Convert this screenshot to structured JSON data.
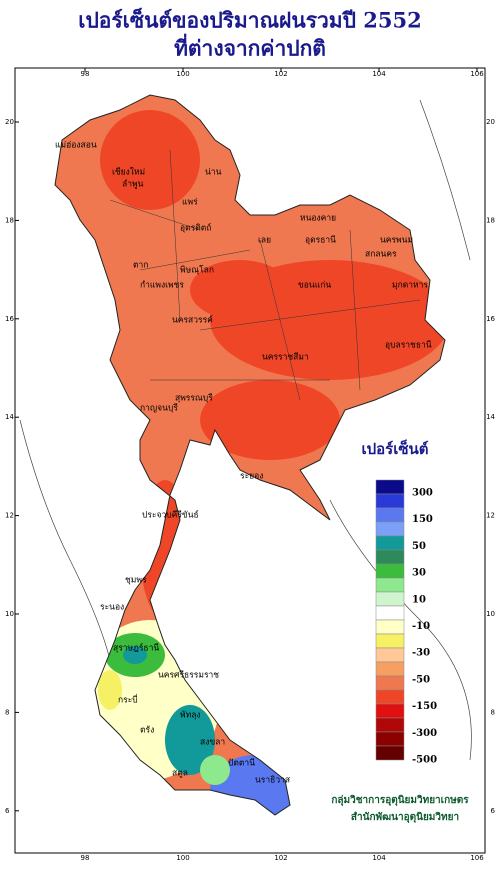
{
  "header": {
    "title": "เปอร์เซ็นต์ของปริมาณฝนรวมปี 2552",
    "subtitle": "ที่ต่างจากค่าปกติ"
  },
  "map": {
    "lon_ticks": [
      98,
      100,
      102,
      104,
      106
    ],
    "lat_ticks": [
      20,
      18,
      16,
      14,
      12,
      10,
      8,
      6
    ],
    "labels": [
      "แม่ฮ่องสอน",
      "เชียงใหม่",
      "ลำพูน",
      "น่าน",
      "แพร่",
      "อุตรดิตถ์",
      "ตาก",
      "พิษณุโลก",
      "กำแพงเพชร",
      "เลย",
      "หนองคาย",
      "อุดรธานี",
      "นครพนม",
      "สกลนคร",
      "ขอนแก่น",
      "มุกดาหาร",
      "นครสวรรค์",
      "นครราชสีมา",
      "อุบลราชธานี",
      "กาญจนบุรี",
      "สุพรรณบุรี",
      "ระยอง",
      "ประจวบคีรีขันธ์",
      "ชุมพร",
      "ระนอง",
      "สุราษฎร์ธานี",
      "นครศรีธรรมราช",
      "กระบี่",
      "ตรัง",
      "พัทลุง",
      "สงขลา",
      "สตูล",
      "ปัตตานี",
      "นราธิวาส"
    ]
  },
  "legend": {
    "title": "เปอร์เซ็นต์",
    "colors": [
      "#0a0a8a",
      "#2a3ad8",
      "#5a78f0",
      "#7aa0f8",
      "#129a9a",
      "#2e8a5a",
      "#3cbc3c",
      "#8ee88e",
      "#cef5ce",
      "#ffffff",
      "#ffffc8",
      "#f5f064",
      "#ffc896",
      "#f5a060",
      "#f07850",
      "#f04628",
      "#e01010",
      "#b00808",
      "#8c0000",
      "#640000"
    ],
    "labels": [
      300,
      150,
      50,
      30,
      10,
      -10,
      -30,
      -50,
      -150,
      -300,
      -500
    ]
  },
  "credits": [
    "กลุ่มวิชาการอุตุนิยมวิทยาเกษตร",
    "สำนักพัฒนาอุตุนิยมวิทยา"
  ]
}
